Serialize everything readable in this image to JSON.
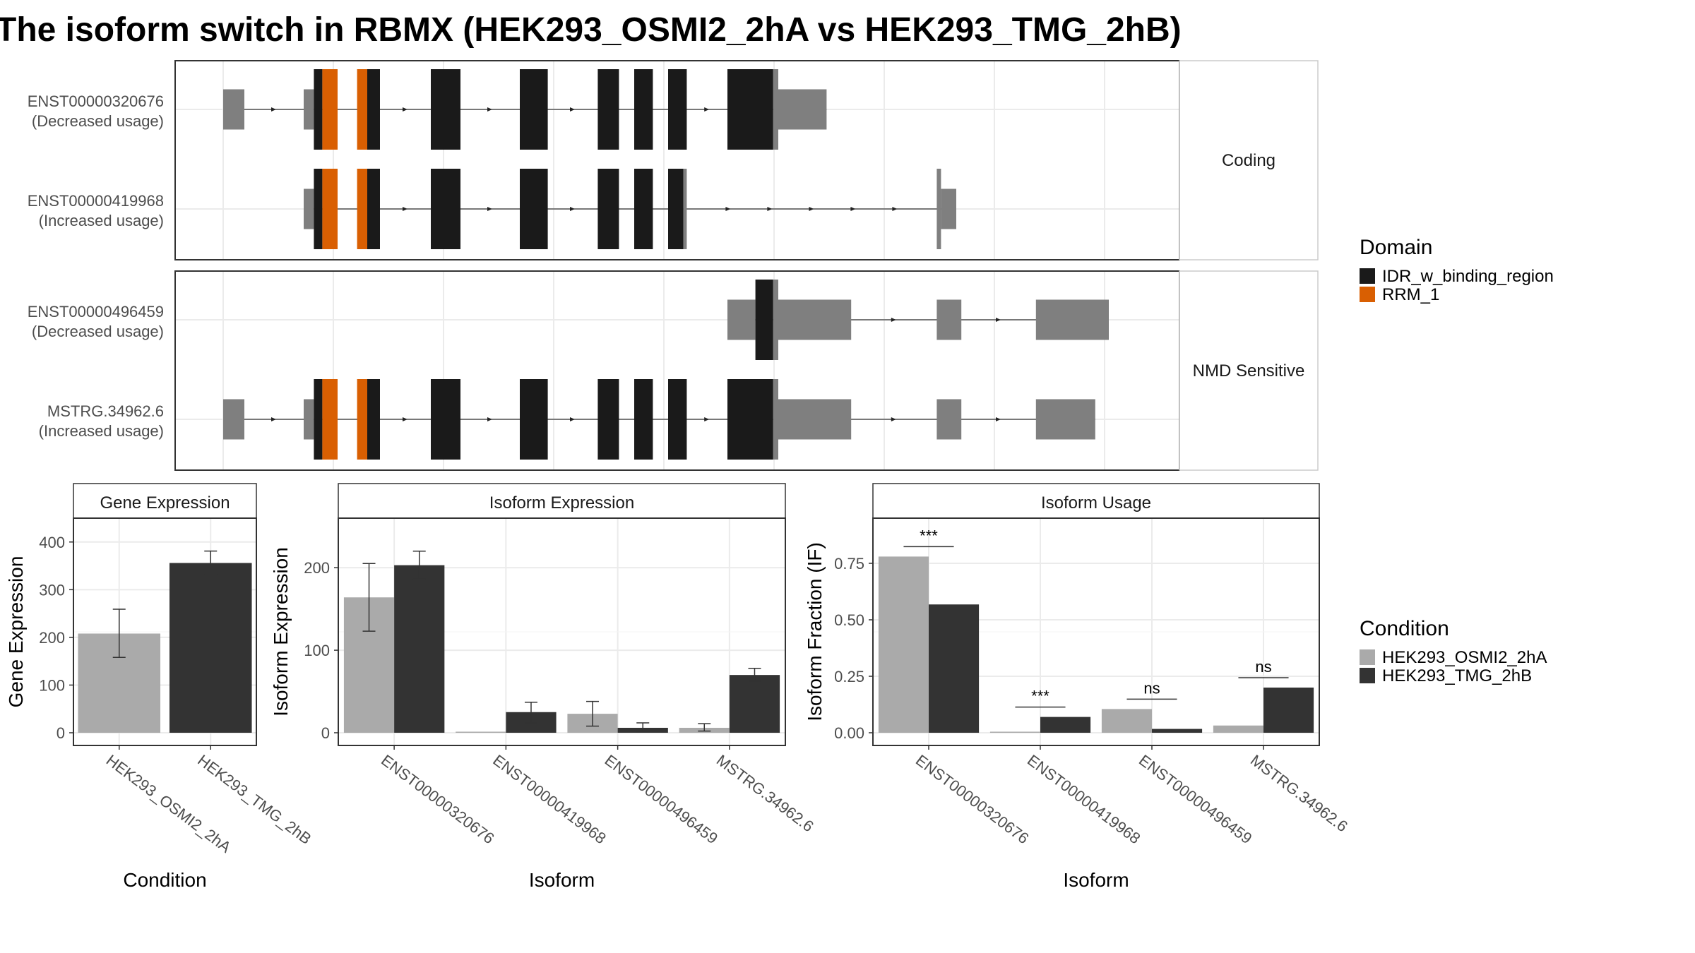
{
  "title": "The isoform switch in RBMX (HEK293_OSMI2_2hA vs HEK293_TMG_2hB)",
  "colors": {
    "idr": "#1a1a1a",
    "rrm": "#d95f02",
    "utr": "#7f7f7f",
    "cond1": "#aaaaaa",
    "cond2": "#333333"
  },
  "structure": {
    "panels": [
      {
        "label": "Coding",
        "isoforms": [
          {
            "id": "ENST00000320676",
            "usage": "(Decreased usage)",
            "exons": [
              {
                "start": 5,
                "end": 30,
                "type": "utr"
              },
              {
                "start": 100,
                "end": 112,
                "type": "utr"
              },
              {
                "start": 112,
                "end": 122,
                "type": "cds",
                "domain": "IDR"
              },
              {
                "start": 122,
                "end": 140,
                "type": "cds",
                "domain": "RRM"
              },
              {
                "start": 163,
                "end": 175,
                "type": "cds",
                "domain": "RRM"
              },
              {
                "start": 175,
                "end": 190,
                "type": "cds",
                "domain": "IDR"
              },
              {
                "start": 250,
                "end": 285,
                "type": "cds",
                "domain": "IDR"
              },
              {
                "start": 355,
                "end": 388,
                "type": "cds",
                "domain": "IDR"
              },
              {
                "start": 447,
                "end": 472,
                "type": "cds",
                "domain": "IDR"
              },
              {
                "start": 490,
                "end": 512,
                "type": "cds",
                "domain": "IDR"
              },
              {
                "start": 530,
                "end": 552,
                "type": "cds",
                "domain": "IDR"
              },
              {
                "start": 600,
                "end": 654,
                "type": "cds",
                "domain": "IDR"
              },
              {
                "start": 654,
                "end": 660,
                "type": "utrcds"
              },
              {
                "start": 660,
                "end": 717,
                "type": "utr"
              }
            ]
          },
          {
            "id": "ENST00000419968",
            "usage": "(Increased usage)",
            "exons": [
              {
                "start": 100,
                "end": 112,
                "type": "utr"
              },
              {
                "start": 112,
                "end": 122,
                "type": "cds",
                "domain": "IDR"
              },
              {
                "start": 122,
                "end": 140,
                "type": "cds",
                "domain": "RRM"
              },
              {
                "start": 163,
                "end": 175,
                "type": "cds",
                "domain": "RRM"
              },
              {
                "start": 175,
                "end": 190,
                "type": "cds",
                "domain": "IDR"
              },
              {
                "start": 250,
                "end": 285,
                "type": "cds",
                "domain": "IDR"
              },
              {
                "start": 355,
                "end": 388,
                "type": "cds",
                "domain": "IDR"
              },
              {
                "start": 447,
                "end": 472,
                "type": "cds",
                "domain": "IDR"
              },
              {
                "start": 490,
                "end": 512,
                "type": "cds",
                "domain": "IDR"
              },
              {
                "start": 530,
                "end": 548,
                "type": "cds",
                "domain": "IDR"
              },
              {
                "start": 548,
                "end": 552,
                "type": "utrcds"
              },
              {
                "start": 847,
                "end": 852,
                "type": "utrcds"
              },
              {
                "start": 852,
                "end": 870,
                "type": "utr"
              }
            ]
          }
        ]
      },
      {
        "label": "NMD Sensitive",
        "isoforms": [
          {
            "id": "ENST00000496459",
            "usage": "(Decreased usage)",
            "exons": [
              {
                "start": 600,
                "end": 633,
                "type": "utr"
              },
              {
                "start": 633,
                "end": 654,
                "type": "cds",
                "domain": "IDR"
              },
              {
                "start": 654,
                "end": 660,
                "type": "utrcds"
              },
              {
                "start": 660,
                "end": 746,
                "type": "utr"
              },
              {
                "start": 847,
                "end": 876,
                "type": "utr"
              },
              {
                "start": 964,
                "end": 1050,
                "type": "utr"
              }
            ]
          },
          {
            "id": "MSTRG.34962.6",
            "usage": "(Increased usage)",
            "exons": [
              {
                "start": 5,
                "end": 30,
                "type": "utr"
              },
              {
                "start": 100,
                "end": 112,
                "type": "utr"
              },
              {
                "start": 112,
                "end": 122,
                "type": "cds",
                "domain": "IDR"
              },
              {
                "start": 122,
                "end": 140,
                "type": "cds",
                "domain": "RRM"
              },
              {
                "start": 163,
                "end": 175,
                "type": "cds",
                "domain": "RRM"
              },
              {
                "start": 175,
                "end": 190,
                "type": "cds",
                "domain": "IDR"
              },
              {
                "start": 250,
                "end": 285,
                "type": "cds",
                "domain": "IDR"
              },
              {
                "start": 355,
                "end": 388,
                "type": "cds",
                "domain": "IDR"
              },
              {
                "start": 447,
                "end": 472,
                "type": "cds",
                "domain": "IDR"
              },
              {
                "start": 490,
                "end": 512,
                "type": "cds",
                "domain": "IDR"
              },
              {
                "start": 530,
                "end": 552,
                "type": "cds",
                "domain": "IDR"
              },
              {
                "start": 600,
                "end": 654,
                "type": "cds",
                "domain": "IDR"
              },
              {
                "start": 654,
                "end": 660,
                "type": "utrcds"
              },
              {
                "start": 660,
                "end": 746,
                "type": "utr"
              },
              {
                "start": 847,
                "end": 876,
                "type": "utr"
              },
              {
                "start": 964,
                "end": 1034,
                "type": "utr"
              }
            ]
          }
        ]
      }
    ]
  },
  "legend": {
    "domain_title": "Domain",
    "domain_items": [
      {
        "label": "IDR_w_binding_region",
        "color": "#1a1a1a"
      },
      {
        "label": "RRM_1",
        "color": "#d95f02"
      }
    ],
    "condition_title": "Condition",
    "condition_items": [
      {
        "label": "HEK293_OSMI2_2hA",
        "color": "#aaaaaa"
      },
      {
        "label": "HEK293_TMG_2hB",
        "color": "#333333"
      }
    ]
  },
  "chart_data": [
    {
      "type": "bar",
      "title": "Gene Expression",
      "xlabel": "Condition",
      "ylabel": "Gene Expression",
      "categories": [
        "HEK293_OSMI2_2hA",
        "HEK293_TMG_2hB"
      ],
      "values": [
        208,
        356
      ],
      "error_low": [
        158,
        332
      ],
      "error_high": [
        259,
        381
      ],
      "ylim": [
        0,
        450
      ],
      "yticks": [
        0,
        100,
        200,
        300,
        400
      ],
      "ytick_labels": [
        "0",
        "100",
        "200",
        "300",
        "400"
      ]
    },
    {
      "type": "bar",
      "title": "Isoform Expression",
      "xlabel": "Isoform",
      "ylabel": "Isoform Expression",
      "categories": [
        "ENST00000320676",
        "ENST00000419968",
        "ENST00000496459",
        "MSTRG.34962.6"
      ],
      "series": [
        {
          "name": "HEK293_OSMI2_2hA",
          "values": [
            164,
            0,
            23,
            6
          ],
          "error_low": [
            123,
            0,
            8,
            2
          ],
          "error_high": [
            205,
            0,
            38,
            11
          ]
        },
        {
          "name": "HEK293_TMG_2hB",
          "values": [
            203,
            25,
            6,
            70
          ],
          "error_low": [
            186,
            12,
            1,
            63
          ],
          "error_high": [
            220,
            37,
            12,
            78
          ]
        }
      ],
      "ylim": [
        0,
        260
      ],
      "yticks": [
        0,
        100,
        200
      ],
      "ytick_labels": [
        "0",
        "100",
        "200"
      ]
    },
    {
      "type": "bar",
      "title": "Isoform Usage",
      "xlabel": "Isoform",
      "ylabel": "Isoform Fraction (IF)",
      "categories": [
        "ENST00000320676",
        "ENST00000419968",
        "ENST00000496459",
        "MSTRG.34962.6"
      ],
      "series": [
        {
          "name": "HEK293_OSMI2_2hA",
          "values": [
            0.78,
            0.0,
            0.105,
            0.032
          ]
        },
        {
          "name": "HEK293_TMG_2hB",
          "values": [
            0.568,
            0.07,
            0.017,
            0.2
          ]
        }
      ],
      "significance": [
        "***",
        "***",
        "ns",
        "ns"
      ],
      "ylim": [
        0,
        0.95
      ],
      "yticks": [
        0,
        0.25,
        0.5,
        0.75
      ],
      "ytick_labels": [
        "0.00",
        "0.25",
        "0.50",
        "0.75"
      ]
    }
  ]
}
